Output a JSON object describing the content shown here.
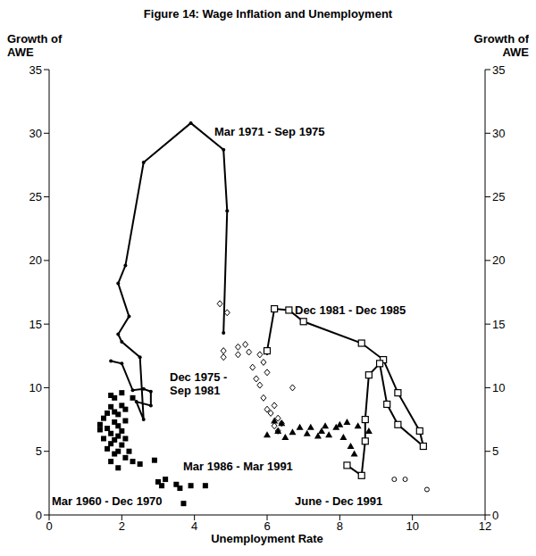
{
  "chart_data": {
    "type": "scatter",
    "title": "Figure 14: Wage Inflation and Unemployment",
    "x_label": "Unemployment Rate",
    "y_label": "Growth of AWE",
    "y2_label": "Growth of AWE",
    "xlim": [
      0,
      12
    ],
    "xticks": [
      0,
      2,
      4,
      6,
      8,
      10,
      12
    ],
    "ylim": [
      0,
      35
    ],
    "yticks": [
      0,
      5,
      10,
      15,
      20,
      25,
      30,
      35
    ],
    "y2lim": [
      0,
      35
    ],
    "y2ticks": [
      0,
      5,
      10,
      15,
      20,
      25,
      30,
      35
    ],
    "grid": false,
    "series": [
      {
        "name": "Mar 1960 - Dec 1970",
        "type": "scatter",
        "color": "#000000",
        "marker": "square",
        "line_style": "none",
        "x": [
          1.4,
          1.4,
          1.5,
          1.5,
          1.6,
          1.6,
          1.6,
          1.7,
          1.7,
          1.7,
          1.7,
          1.7,
          1.8,
          1.8,
          1.8,
          1.8,
          1.8,
          1.9,
          1.9,
          1.9,
          1.9,
          1.9,
          2.0,
          2.0,
          2.0,
          2.0,
          2.1,
          2.1,
          2.1,
          2.1,
          2.2,
          2.3,
          2.3,
          2.5,
          2.9,
          3.0,
          3.1,
          3.2,
          3.5,
          3.6,
          3.7,
          3.9,
          4.3
        ],
        "values": [
          6.7,
          7.1,
          6.0,
          7.6,
          5.2,
          6.8,
          8.0,
          4.2,
          5.6,
          6.4,
          8.5,
          9.4,
          4.8,
          5.9,
          7.3,
          8.1,
          9.2,
          3.7,
          5.0,
          6.2,
          7.0,
          7.9,
          5.5,
          6.6,
          8.6,
          9.6,
          4.5,
          6.0,
          7.4,
          8.3,
          5.0,
          4.2,
          9.2,
          4.0,
          4.3,
          2.6,
          2.3,
          2.8,
          2.4,
          2.1,
          0.9,
          2.3,
          2.3
        ]
      },
      {
        "name": "Mar 1971 - Sep 1975",
        "type": "line",
        "color": "#000000",
        "marker": "dot",
        "line_style": "solid",
        "x": [
          1.7,
          2.0,
          2.3,
          2.6,
          2.8,
          2.8,
          2.4,
          2.6,
          2.5,
          2.0,
          1.9,
          2.2,
          1.9,
          2.1,
          2.6,
          3.9,
          4.8,
          4.9,
          4.8
        ],
        "values": [
          12.1,
          11.9,
          9.8,
          9.9,
          9.7,
          8.6,
          8.9,
          7.5,
          12.4,
          13.6,
          14.2,
          15.6,
          18.2,
          19.6,
          27.7,
          30.8,
          28.7,
          23.9,
          14.3
        ]
      },
      {
        "name": "Dec 1975 - Sep 1981",
        "type": "scatter",
        "color": "#000000",
        "marker": "diamond-open",
        "line_style": "none",
        "x": [
          4.7,
          4.9,
          4.8,
          4.8,
          5.2,
          5.2,
          5.4,
          5.5,
          5.6,
          5.7,
          5.8,
          5.8,
          5.9,
          5.9,
          6.0,
          6.0,
          6.1,
          6.2,
          6.3,
          6.3,
          6.4,
          6.2,
          6.7,
          6.0
        ],
        "values": [
          16.6,
          15.9,
          12.9,
          12.4,
          13.2,
          12.6,
          13.4,
          12.8,
          11.6,
          10.7,
          10.2,
          12.6,
          9.2,
          12.0,
          11.2,
          8.3,
          8.0,
          8.6,
          7.6,
          6.6,
          7.2,
          7.0,
          10.0,
          12.8
        ]
      },
      {
        "name": "Dec 1981 - Dec 1985",
        "type": "line",
        "color": "#000000",
        "marker": "square-open",
        "line_style": "solid",
        "x": [
          6.0,
          6.2,
          6.6,
          7.0,
          8.6,
          9.2,
          9.6,
          10.2,
          10.3,
          9.6,
          9.3,
          9.1,
          8.8,
          8.7,
          8.7,
          8.6,
          8.2
        ],
        "values": [
          12.9,
          16.2,
          16.1,
          15.2,
          13.5,
          12.2,
          9.6,
          6.6,
          5.4,
          7.1,
          8.7,
          11.9,
          11.0,
          7.5,
          5.8,
          3.1,
          3.9
        ]
      },
      {
        "name": "Mar 1986 - Mar 1991",
        "type": "scatter",
        "color": "#000000",
        "marker": "triangle",
        "line_style": "none",
        "x": [
          6.0,
          6.2,
          6.3,
          6.4,
          6.5,
          6.7,
          6.9,
          7.1,
          7.2,
          7.4,
          7.5,
          7.6,
          7.7,
          7.9,
          8.0,
          8.1,
          8.2,
          8.3,
          8.4,
          8.5,
          8.8
        ],
        "values": [
          6.3,
          7.4,
          6.6,
          7.2,
          6.1,
          6.5,
          6.9,
          6.4,
          6.9,
          6.2,
          6.6,
          7.0,
          6.3,
          6.9,
          7.1,
          6.1,
          7.3,
          5.4,
          4.8,
          7.0,
          6.6
        ]
      },
      {
        "name": "June - Dec 1991",
        "type": "scatter",
        "color": "#000000",
        "marker": "circle-open",
        "line_style": "none",
        "x": [
          9.5,
          9.8,
          10.4
        ],
        "values": [
          2.8,
          2.8,
          2.0
        ]
      }
    ]
  }
}
